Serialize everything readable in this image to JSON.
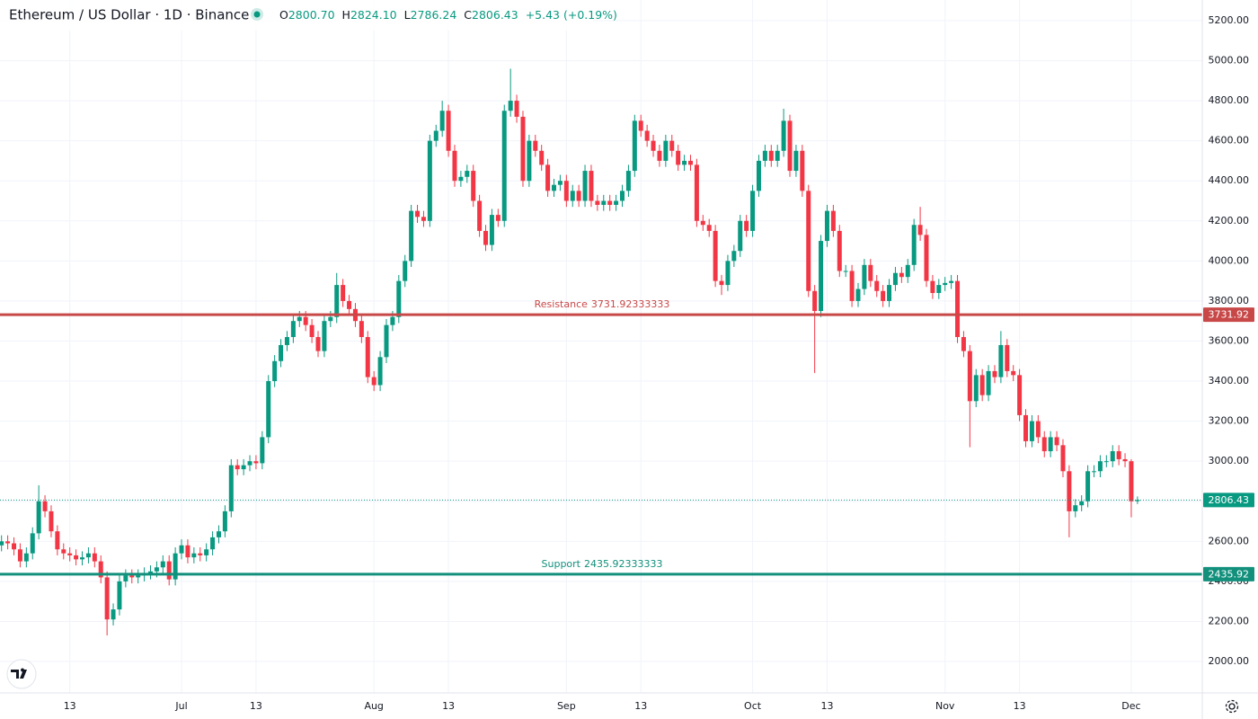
{
  "header": {
    "symbol": "Ethereum / US Dollar · 1D · Binance",
    "o": "O",
    "open": "2800.70",
    "h": "H",
    "high": "2824.10",
    "l": "L",
    "low": "2786.24",
    "c": "C",
    "close": "2806.43",
    "change": "+5.43 (+0.19%)"
  },
  "chart_data": {
    "type": "candlestick",
    "up_color": "#089981",
    "down_color": "#f23645",
    "grid": true,
    "ylim": [
      1843,
      5303
    ],
    "yticks": [
      {
        "value": 2000,
        "label": "2000.00"
      },
      {
        "value": 2200,
        "label": "2200.00"
      },
      {
        "value": 2400,
        "label": "2400.00"
      },
      {
        "value": 2600,
        "label": "2600.00"
      },
      {
        "value": 2800,
        "label": "2800.00"
      },
      {
        "value": 3000,
        "label": "3000.00"
      },
      {
        "value": 3200,
        "label": "3200.00"
      },
      {
        "value": 3400,
        "label": "3400.00"
      },
      {
        "value": 3600,
        "label": "3600.00"
      },
      {
        "value": 3800,
        "label": "3800.00"
      },
      {
        "value": 4000,
        "label": "4000.00"
      },
      {
        "value": 4200,
        "label": "4200.00"
      },
      {
        "value": 4400,
        "label": "4400.00"
      },
      {
        "value": 4600,
        "label": "4600.00"
      },
      {
        "value": 4800,
        "label": "4800.00"
      },
      {
        "value": 5000,
        "label": "5000.00"
      },
      {
        "value": 5200,
        "label": "5200.00"
      }
    ],
    "xticks": [
      {
        "value": "Jun 13",
        "label": "13"
      },
      {
        "value": "Jul 1",
        "label": "Jul"
      },
      {
        "value": "Jul 13",
        "label": "13"
      },
      {
        "value": "Aug 1",
        "label": "Aug"
      },
      {
        "value": "Aug 13",
        "label": "13"
      },
      {
        "value": "Sep 1",
        "label": "Sep"
      },
      {
        "value": "Sep 13",
        "label": "13"
      },
      {
        "value": "Oct 1",
        "label": "Oct"
      },
      {
        "value": "Oct 13",
        "label": "13"
      },
      {
        "value": "Nov 1",
        "label": "Nov"
      },
      {
        "value": "Nov 13",
        "label": "13"
      },
      {
        "value": "Dec 1",
        "label": "Dec"
      }
    ],
    "hlines": [
      {
        "name": "Resistance",
        "value": 3731.92333333,
        "value_label": "3731.92",
        "color": "#c84848",
        "style": "solid"
      },
      {
        "name": "Support",
        "value": 2435.92333333,
        "value_label": "2435.92",
        "color": "#12907c",
        "style": "solid"
      },
      {
        "value": 2806.43,
        "value_label": "2806.43",
        "color": "#089981",
        "style": "dotted"
      }
    ],
    "categories": [
      "Jun 2",
      "Jun 3",
      "Jun 4",
      "Jun 5",
      "Jun 6",
      "Jun 7",
      "Jun 8",
      "Jun 9",
      "Jun 10",
      "Jun 11",
      "Jun 12",
      "Jun 13",
      "Jun 14",
      "Jun 15",
      "Jun 16",
      "Jun 17",
      "Jun 18",
      "Jun 19",
      "Jun 20",
      "Jun 21",
      "Jun 22",
      "Jun 23",
      "Jun 24",
      "Jun 25",
      "Jun 26",
      "Jun 27",
      "Jun 28",
      "Jun 29",
      "Jun 30",
      "Jul 1",
      "Jul 2",
      "Jul 3",
      "Jul 4",
      "Jul 5",
      "Jul 6",
      "Jul 7",
      "Jul 8",
      "Jul 9",
      "Jul 10",
      "Jul 11",
      "Jul 12",
      "Jul 13",
      "Jul 14",
      "Jul 15",
      "Jul 16",
      "Jul 17",
      "Jul 18",
      "Jul 19",
      "Jul 20",
      "Jul 21",
      "Jul 22",
      "Jul 23",
      "Jul 24",
      "Jul 25",
      "Jul 26",
      "Jul 27",
      "Jul 28",
      "Jul 29",
      "Jul 30",
      "Jul 31",
      "Aug 1",
      "Aug 2",
      "Aug 3",
      "Aug 4",
      "Aug 5",
      "Aug 6",
      "Aug 7",
      "Aug 8",
      "Aug 9",
      "Aug 10",
      "Aug 11",
      "Aug 12",
      "Aug 13",
      "Aug 14",
      "Aug 15",
      "Aug 16",
      "Aug 17",
      "Aug 18",
      "Aug 19",
      "Aug 20",
      "Aug 21",
      "Aug 22",
      "Aug 23",
      "Aug 24",
      "Aug 25",
      "Aug 26",
      "Aug 27",
      "Aug 28",
      "Aug 29",
      "Aug 30",
      "Aug 31",
      "Sep 1",
      "Sep 2",
      "Sep 3",
      "Sep 4",
      "Sep 5",
      "Sep 6",
      "Sep 7",
      "Sep 8",
      "Sep 9",
      "Sep 10",
      "Sep 11",
      "Sep 12",
      "Sep 13",
      "Sep 14",
      "Sep 15",
      "Sep 16",
      "Sep 17",
      "Sep 18",
      "Sep 19",
      "Sep 20",
      "Sep 21",
      "Sep 22",
      "Sep 23",
      "Sep 24",
      "Sep 25",
      "Sep 26",
      "Sep 27",
      "Sep 28",
      "Sep 29",
      "Sep 30",
      "Oct 1",
      "Oct 2",
      "Oct 3",
      "Oct 4",
      "Oct 5",
      "Oct 6",
      "Oct 7",
      "Oct 8",
      "Oct 9",
      "Oct 10",
      "Oct 11",
      "Oct 12",
      "Oct 13",
      "Oct 14",
      "Oct 15",
      "Oct 16",
      "Oct 17",
      "Oct 18",
      "Oct 19",
      "Oct 20",
      "Oct 21",
      "Oct 22",
      "Oct 23",
      "Oct 24",
      "Oct 25",
      "Oct 26",
      "Oct 27",
      "Oct 28",
      "Oct 29",
      "Oct 30",
      "Oct 31",
      "Nov 1",
      "Nov 2",
      "Nov 3",
      "Nov 4",
      "Nov 5",
      "Nov 6",
      "Nov 7",
      "Nov 8",
      "Nov 9",
      "Nov 10",
      "Nov 11",
      "Nov 12",
      "Nov 13",
      "Nov 14",
      "Nov 15",
      "Nov 16",
      "Nov 17",
      "Nov 18",
      "Nov 19",
      "Nov 20",
      "Nov 21",
      "Nov 22",
      "Nov 23",
      "Nov 24",
      "Nov 25",
      "Nov 26",
      "Nov 27",
      "Nov 28",
      "Nov 29",
      "Nov 30",
      "Dec 1",
      "Dec 2"
    ],
    "open": [
      2580,
      2600,
      2590,
      2560,
      2500,
      2540,
      2640,
      2800,
      2750,
      2650,
      2560,
      2540,
      2530,
      2510,
      2520,
      2540,
      2500,
      2420,
      2210,
      2260,
      2400,
      2430,
      2420,
      2430,
      2440,
      2450,
      2470,
      2500,
      2410,
      2540,
      2580,
      2520,
      2540,
      2530,
      2560,
      2620,
      2650,
      2750,
      2980,
      2960,
      2980,
      3000,
      2990,
      3120,
      3400,
      3500,
      3580,
      3620,
      3700,
      3720,
      3680,
      3620,
      3550,
      3700,
      3720,
      3880,
      3800,
      3760,
      3700,
      3620,
      3420,
      3380,
      3520,
      3680,
      3720,
      3900,
      4000,
      4250,
      4220,
      4200,
      4600,
      4650,
      4750,
      4550,
      4400,
      4420,
      4450,
      4300,
      4150,
      4080,
      4230,
      4200,
      4750,
      4800,
      4720,
      4400,
      4600,
      4550,
      4480,
      4350,
      4380,
      4400,
      4300,
      4350,
      4300,
      4450,
      4300,
      4280,
      4300,
      4280,
      4300,
      4350,
      4450,
      4700,
      4650,
      4600,
      4550,
      4500,
      4600,
      4550,
      4480,
      4500,
      4480,
      4200,
      4180,
      4150,
      3900,
      3880,
      4000,
      4050,
      4200,
      4150,
      4350,
      4500,
      4550,
      4500,
      4550,
      4700,
      4450,
      4550,
      4350,
      3850,
      3750,
      4100,
      4250,
      4150,
      3950,
      3950,
      3800,
      3860,
      3980,
      3900,
      3850,
      3800,
      3880,
      3940,
      3920,
      3980,
      4180,
      4130,
      3900,
      3840,
      3880,
      3890,
      3900,
      3620,
      3550,
      3300,
      3430,
      3330,
      3450,
      3420,
      3580,
      3450,
      3430,
      3230,
      3100,
      3200,
      3120,
      3050,
      3120,
      3080,
      2950,
      2750,
      2780,
      2800,
      2950,
      2950,
      3000,
      3000,
      3050,
      3010,
      3000,
      2800.7
    ],
    "high": [
      2630,
      2630,
      2620,
      2590,
      2570,
      2670,
      2880,
      2830,
      2780,
      2680,
      2590,
      2570,
      2560,
      2550,
      2570,
      2570,
      2530,
      2450,
      2290,
      2430,
      2460,
      2460,
      2460,
      2470,
      2480,
      2500,
      2530,
      2530,
      2570,
      2610,
      2610,
      2570,
      2570,
      2590,
      2650,
      2680,
      2780,
      3010,
      3010,
      3010,
      3030,
      3030,
      3150,
      3430,
      3530,
      3610,
      3650,
      3730,
      3750,
      3750,
      3710,
      3650,
      3730,
      3750,
      3940,
      3910,
      3830,
      3790,
      3730,
      3650,
      3450,
      3550,
      3710,
      3750,
      3930,
      4030,
      4280,
      4280,
      4250,
      4630,
      4680,
      4800,
      4780,
      4580,
      4450,
      4480,
      4480,
      4330,
      4180,
      4260,
      4260,
      4780,
      4960,
      4830,
      4750,
      4630,
      4630,
      4580,
      4510,
      4410,
      4430,
      4430,
      4380,
      4380,
      4480,
      4480,
      4330,
      4330,
      4330,
      4330,
      4380,
      4480,
      4730,
      4730,
      4680,
      4630,
      4580,
      4630,
      4630,
      4580,
      4530,
      4530,
      4510,
      4230,
      4210,
      4180,
      3930,
      4030,
      4080,
      4230,
      4230,
      4380,
      4530,
      4580,
      4580,
      4580,
      4760,
      4730,
      4580,
      4580,
      4380,
      3880,
      4130,
      4280,
      4280,
      4180,
      3980,
      3980,
      3890,
      4010,
      4010,
      3930,
      3880,
      3910,
      3970,
      3970,
      4010,
      4210,
      4270,
      4160,
      3930,
      3910,
      3920,
      3930,
      3930,
      3650,
      3580,
      3460,
      3460,
      3480,
      3480,
      3650,
      3610,
      3480,
      3460,
      3260,
      3230,
      3230,
      3150,
      3150,
      3150,
      3110,
      2980,
      2810,
      2830,
      2980,
      2980,
      3030,
      3030,
      3080,
      3080,
      3040,
      3010,
      2824.1
    ],
    "low": [
      2550,
      2560,
      2530,
      2470,
      2470,
      2510,
      2610,
      2720,
      2620,
      2530,
      2510,
      2500,
      2480,
      2480,
      2490,
      2470,
      2390,
      2130,
      2180,
      2230,
      2370,
      2390,
      2390,
      2400,
      2410,
      2420,
      2440,
      2380,
      2380,
      2510,
      2490,
      2490,
      2500,
      2500,
      2530,
      2590,
      2620,
      2720,
      2930,
      2930,
      2950,
      2960,
      2960,
      3090,
      3370,
      3470,
      3550,
      3590,
      3670,
      3650,
      3590,
      3520,
      3520,
      3670,
      3690,
      3770,
      3730,
      3670,
      3590,
      3390,
      3350,
      3350,
      3490,
      3650,
      3690,
      3870,
      3970,
      4190,
      4170,
      4170,
      4570,
      4620,
      4520,
      4370,
      4370,
      4390,
      4270,
      4120,
      4050,
      4050,
      4170,
      4170,
      4720,
      4690,
      4370,
      4370,
      4520,
      4450,
      4320,
      4320,
      4350,
      4270,
      4270,
      4270,
      4270,
      4270,
      4250,
      4250,
      4250,
      4250,
      4270,
      4320,
      4420,
      4620,
      4570,
      4520,
      4470,
      4470,
      4520,
      4450,
      4450,
      4450,
      4170,
      4150,
      4120,
      3870,
      3830,
      3850,
      3970,
      4020,
      4120,
      4120,
      4320,
      4470,
      4470,
      4470,
      4520,
      4420,
      4420,
      4320,
      3820,
      3440,
      3720,
      4070,
      4120,
      3920,
      3920,
      3770,
      3770,
      3830,
      3870,
      3820,
      3770,
      3770,
      3850,
      3890,
      3890,
      3950,
      4100,
      3870,
      3810,
      3810,
      3850,
      3860,
      3590,
      3520,
      3070,
      3270,
      3300,
      3300,
      3390,
      3390,
      3420,
      3400,
      3200,
      3070,
      3070,
      3090,
      3020,
      3020,
      3050,
      2920,
      2620,
      2720,
      2750,
      2770,
      2920,
      2920,
      2970,
      2970,
      2980,
      2970,
      2720,
      2786.24
    ],
    "close": [
      2600,
      2590,
      2560,
      2500,
      2540,
      2640,
      2800,
      2750,
      2650,
      2560,
      2540,
      2530,
      2510,
      2520,
      2540,
      2500,
      2420,
      2210,
      2260,
      2400,
      2430,
      2420,
      2430,
      2440,
      2450,
      2470,
      2500,
      2410,
      2540,
      2580,
      2520,
      2540,
      2530,
      2560,
      2620,
      2650,
      2750,
      2980,
      2960,
      2980,
      3000,
      2990,
      3120,
      3400,
      3500,
      3580,
      3620,
      3700,
      3720,
      3680,
      3620,
      3550,
      3700,
      3720,
      3880,
      3800,
      3760,
      3700,
      3620,
      3420,
      3380,
      3520,
      3680,
      3720,
      3900,
      4000,
      4250,
      4220,
      4200,
      4600,
      4650,
      4750,
      4550,
      4400,
      4420,
      4450,
      4300,
      4150,
      4080,
      4230,
      4200,
      4750,
      4800,
      4720,
      4400,
      4600,
      4550,
      4480,
      4350,
      4380,
      4400,
      4300,
      4350,
      4300,
      4450,
      4300,
      4280,
      4300,
      4280,
      4300,
      4350,
      4450,
      4700,
      4650,
      4600,
      4550,
      4500,
      4600,
      4550,
      4480,
      4500,
      4480,
      4200,
      4180,
      4150,
      3900,
      3880,
      4000,
      4050,
      4200,
      4150,
      4350,
      4500,
      4550,
      4500,
      4550,
      4700,
      4450,
      4550,
      4350,
      3850,
      3750,
      4100,
      4250,
      4150,
      3950,
      3950,
      3800,
      3860,
      3980,
      3900,
      3850,
      3800,
      3880,
      3940,
      3920,
      3980,
      4180,
      4130,
      3900,
      3840,
      3880,
      3890,
      3900,
      3620,
      3550,
      3300,
      3430,
      3330,
      3450,
      3420,
      3580,
      3450,
      3430,
      3230,
      3100,
      3200,
      3120,
      3050,
      3120,
      3080,
      2950,
      2750,
      2780,
      2800,
      2950,
      2950,
      3000,
      3000,
      3050,
      3010,
      3000,
      2800,
      2806.43
    ]
  }
}
